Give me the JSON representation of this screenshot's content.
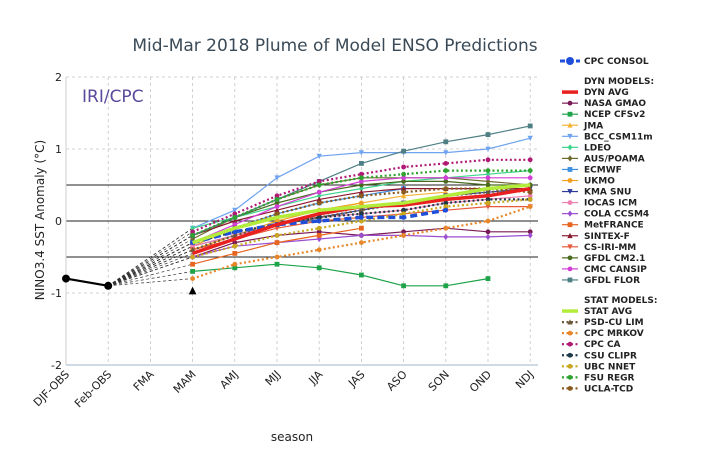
{
  "chart_data": {
    "type": "line",
    "title": "Mid-Mar 2018 Plume of Model ENSO Predictions",
    "watermark": "IRI/CPC",
    "xlabel": "season",
    "ylabel": "NINO3.4 SST Anomaly (°C)",
    "categories": [
      "DJF-OBS",
      "Feb-OBS",
      "FMA",
      "MAM",
      "AMJ",
      "MJJ",
      "JJA",
      "JAS",
      "ASO",
      "SON",
      "OND",
      "NDJ"
    ],
    "ylim": [
      -2,
      2
    ],
    "yticks": [
      -2,
      -1,
      0,
      1,
      2
    ],
    "reference_lines": [
      -0.5,
      0,
      0.5
    ],
    "observed": {
      "name": "",
      "color": "#000000",
      "values": [
        -0.8,
        -0.9
      ]
    },
    "legend_headers": {
      "consol": "CPC CONSOL",
      "dyn": "DYN MODELS:",
      "stat": "STAT MODELS:"
    },
    "series": [
      {
        "name": "CPC CONSOL",
        "group": "consol",
        "color": "#1f4fd8",
        "style": "dash",
        "width": 3,
        "marker": "circle",
        "values": [
          null,
          null,
          null,
          -0.3,
          -0.15,
          -0.05,
          0.0,
          0.05,
          0.05,
          0.15,
          null,
          null
        ]
      },
      {
        "name": "DYN AVG",
        "group": "dyn",
        "color": "#e8201f",
        "style": "solid",
        "width": 3,
        "marker": "none",
        "values": [
          null,
          null,
          null,
          -0.45,
          -0.25,
          -0.05,
          0.1,
          0.2,
          0.22,
          0.3,
          0.35,
          0.45
        ]
      },
      {
        "name": "NASA GMAO",
        "group": "dyn",
        "color": "#7a1a55",
        "style": "solid",
        "width": 1,
        "marker": "circle",
        "values": [
          null,
          null,
          null,
          -0.5,
          -0.3,
          -0.2,
          -0.15,
          -0.2,
          -0.15,
          -0.1,
          -0.15,
          -0.15
        ]
      },
      {
        "name": "NCEP CFSv2",
        "group": "dyn",
        "color": "#1fa34a",
        "style": "solid",
        "width": 1,
        "marker": "square",
        "values": [
          null,
          null,
          null,
          -0.7,
          -0.65,
          -0.6,
          -0.65,
          -0.75,
          -0.9,
          -0.9,
          -0.8,
          null
        ]
      },
      {
        "name": "JMA",
        "group": "dyn",
        "color": "#f5b335",
        "style": "solid",
        "width": 1,
        "marker": "triangle",
        "values": [
          null,
          null,
          null,
          -0.35,
          -0.1,
          0.05,
          0.15,
          0.25,
          0.35,
          0.4,
          null,
          null
        ]
      },
      {
        "name": "BCC_CSM11m",
        "group": "dyn",
        "color": "#6fa3f0",
        "style": "solid",
        "width": 1,
        "marker": "triangle-down",
        "values": [
          null,
          null,
          null,
          -0.1,
          0.15,
          0.6,
          0.9,
          0.95,
          0.95,
          0.95,
          1.0,
          1.15
        ]
      },
      {
        "name": "LDEO",
        "group": "dyn",
        "color": "#3ed48c",
        "style": "solid",
        "width": 1,
        "marker": "diamond",
        "values": [
          null,
          null,
          null,
          -0.1,
          0.05,
          0.2,
          0.35,
          0.45,
          0.55,
          0.6,
          0.65,
          0.7
        ]
      },
      {
        "name": "AUS/POAMA",
        "group": "dyn",
        "color": "#6b6b2e",
        "style": "solid",
        "width": 1,
        "marker": "diamond",
        "values": [
          null,
          null,
          null,
          -0.25,
          0.05,
          0.3,
          0.5,
          0.6,
          0.6,
          0.6,
          0.55,
          0.5
        ]
      },
      {
        "name": "ECMWF",
        "group": "dyn",
        "color": "#3d8fe0",
        "style": "solid",
        "width": 1,
        "marker": "square",
        "values": [
          null,
          null,
          null,
          -0.3,
          -0.1,
          0.1,
          0.25,
          0.35,
          0.45,
          null,
          null,
          null
        ]
      },
      {
        "name": "UKMO",
        "group": "dyn",
        "color": "#f0a020",
        "style": "solid",
        "width": 1,
        "marker": "circle",
        "values": [
          null,
          null,
          null,
          -0.4,
          -0.2,
          0.0,
          0.15,
          0.25,
          null,
          null,
          null,
          null
        ]
      },
      {
        "name": "KMA SNU",
        "group": "dyn",
        "color": "#2b3a9b",
        "style": "solid",
        "width": 1,
        "marker": "triangle-down",
        "values": [
          null,
          null,
          null,
          -0.35,
          -0.2,
          -0.05,
          0.05,
          0.15,
          0.25,
          0.35,
          0.4,
          0.45
        ]
      },
      {
        "name": "IOCAS ICM",
        "group": "dyn",
        "color": "#ef7fb0",
        "style": "solid",
        "width": 1,
        "marker": "circle",
        "values": [
          null,
          null,
          null,
          -0.35,
          -0.2,
          -0.05,
          0.05,
          0.1,
          0.15,
          0.25,
          0.3,
          0.35
        ]
      },
      {
        "name": "COLA CCSM4",
        "group": "dyn",
        "color": "#9b4fd0",
        "style": "solid",
        "width": 1,
        "marker": "diamond",
        "values": [
          null,
          null,
          null,
          -0.5,
          -0.35,
          -0.3,
          -0.25,
          -0.2,
          -0.2,
          -0.22,
          -0.22,
          -0.2
        ]
      },
      {
        "name": "MetFRANCE",
        "group": "dyn",
        "color": "#e8651f",
        "style": "solid",
        "width": 1,
        "marker": "square",
        "values": [
          null,
          null,
          null,
          -0.6,
          -0.45,
          -0.3,
          -0.2,
          -0.1,
          null,
          null,
          null,
          null
        ]
      },
      {
        "name": "SINTEX-F",
        "group": "dyn",
        "color": "#8a1a30",
        "style": "solid",
        "width": 1,
        "marker": "triangle",
        "values": [
          null,
          null,
          null,
          -0.2,
          0.0,
          0.15,
          0.3,
          0.4,
          0.45,
          0.45,
          0.45,
          0.45
        ]
      },
      {
        "name": "CS-IRI-MM",
        "group": "dyn",
        "color": "#e85a3a",
        "style": "solid",
        "width": 1,
        "marker": "triangle-down",
        "values": [
          null,
          null,
          null,
          -0.4,
          -0.25,
          -0.1,
          0.0,
          0.05,
          0.1,
          0.15,
          0.2,
          0.2
        ]
      },
      {
        "name": "GFDL CM2.1",
        "group": "dyn",
        "color": "#4a6a1f",
        "style": "solid",
        "width": 1,
        "marker": "circle",
        "values": [
          null,
          null,
          null,
          -0.2,
          0.05,
          0.25,
          0.4,
          0.5,
          0.55,
          0.55,
          0.5,
          0.5
        ]
      },
      {
        "name": "CMC CANSIP",
        "group": "dyn",
        "color": "#d23fd6",
        "style": "solid",
        "width": 1,
        "marker": "circle",
        "values": [
          null,
          null,
          null,
          -0.3,
          -0.05,
          0.2,
          0.4,
          0.55,
          0.6,
          0.6,
          0.6,
          0.6
        ]
      },
      {
        "name": "GFDL FLOR",
        "group": "dyn",
        "color": "#4e7f85",
        "style": "solid",
        "width": 1,
        "marker": "square",
        "values": [
          null,
          null,
          null,
          -0.2,
          0.05,
          0.3,
          0.55,
          0.8,
          0.97,
          1.1,
          1.2,
          1.32
        ]
      },
      {
        "name": "STAT AVG",
        "group": "stat",
        "color": "#b3ec3a",
        "style": "solid",
        "width": 3,
        "marker": "none",
        "values": [
          null,
          null,
          null,
          -0.3,
          -0.1,
          0.05,
          0.15,
          0.2,
          0.25,
          0.35,
          0.45,
          0.5
        ]
      },
      {
        "name": "PSD-CU LIM",
        "group": "stat",
        "color": "#6b5a3a",
        "style": "dot",
        "width": 2,
        "marker": "triangle",
        "values": [
          null,
          null,
          null,
          -0.4,
          -0.2,
          -0.05,
          0.05,
          0.15,
          0.25,
          0.35,
          0.4,
          0.45
        ]
      },
      {
        "name": "CPC MRKOV",
        "group": "stat",
        "color": "#e8872a",
        "style": "dot",
        "width": 2,
        "marker": "circle",
        "values": [
          null,
          null,
          null,
          -0.8,
          -0.6,
          -0.5,
          -0.4,
          -0.3,
          -0.2,
          -0.1,
          0.0,
          0.2
        ]
      },
      {
        "name": "CPC CA",
        "group": "stat",
        "color": "#b01a75",
        "style": "dot",
        "width": 2,
        "marker": "circle",
        "values": [
          null,
          null,
          null,
          -0.15,
          0.1,
          0.35,
          0.55,
          0.65,
          0.75,
          0.8,
          0.85,
          0.85
        ]
      },
      {
        "name": "CSU CLIPR",
        "group": "stat",
        "color": "#1f3a4a",
        "style": "dot",
        "width": 2,
        "marker": "circle",
        "values": [
          null,
          null,
          null,
          -0.3,
          -0.15,
          -0.05,
          0.05,
          0.1,
          0.15,
          0.25,
          0.3,
          0.3
        ]
      },
      {
        "name": "UBC NNET",
        "group": "stat",
        "color": "#c9a81f",
        "style": "dot",
        "width": 2,
        "marker": "circle",
        "values": [
          null,
          null,
          null,
          -0.5,
          -0.35,
          -0.2,
          -0.1,
          0.0,
          0.1,
          0.2,
          0.25,
          0.3
        ]
      },
      {
        "name": "FSU REGR",
        "group": "stat",
        "color": "#2fa32f",
        "style": "dot",
        "width": 2,
        "marker": "circle",
        "values": [
          null,
          null,
          null,
          -0.2,
          0.05,
          0.3,
          0.5,
          0.6,
          0.65,
          0.7,
          0.7,
          0.7
        ]
      },
      {
        "name": "UCLA-TCD",
        "group": "stat",
        "color": "#8a5a1f",
        "style": "dot",
        "width": 2,
        "marker": "circle",
        "values": [
          null,
          null,
          null,
          -0.3,
          -0.1,
          0.1,
          0.25,
          0.35,
          0.4,
          0.45,
          0.45,
          0.4
        ]
      }
    ]
  }
}
